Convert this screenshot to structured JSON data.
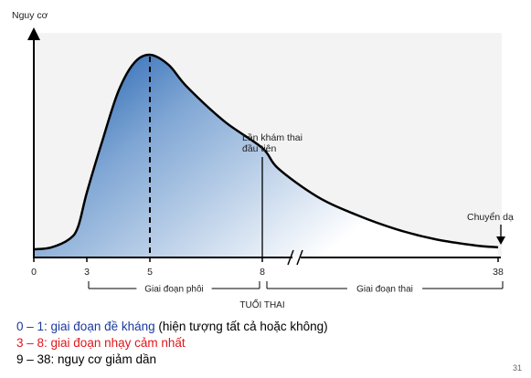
{
  "chart_data": {
    "type": "area",
    "ylabel": "Nguy cơ",
    "xlabel": "TUỔI THAI",
    "x_ticks": [
      "0",
      "3",
      "5",
      "8",
      "38"
    ],
    "series": [
      {
        "points": [
          {
            "x": 0,
            "y": 4
          },
          {
            "x": 1,
            "y": 5
          },
          {
            "x": 2,
            "y": 9
          },
          {
            "x": 2.5,
            "y": 15
          },
          {
            "x": 3,
            "y": 32
          },
          {
            "x": 3.5,
            "y": 58
          },
          {
            "x": 4,
            "y": 82
          },
          {
            "x": 4.5,
            "y": 96
          },
          {
            "x": 5,
            "y": 100
          },
          {
            "x": 5.5,
            "y": 95
          },
          {
            "x": 6,
            "y": 84
          },
          {
            "x": 7,
            "y": 67
          },
          {
            "x": 8,
            "y": 54
          },
          {
            "x": 10,
            "y": 44
          },
          {
            "x": 15,
            "y": 30
          },
          {
            "x": 20,
            "y": 21
          },
          {
            "x": 25,
            "y": 14
          },
          {
            "x": 30,
            "y": 9
          },
          {
            "x": 35,
            "y": 6
          },
          {
            "x": 38,
            "y": 5
          }
        ]
      }
    ],
    "peak_x": 5,
    "annotations": {
      "first_visit": {
        "line1": "Lần khám thai",
        "line2": "đầu tiên",
        "x": 8
      },
      "delivery": "Chuyển dạ"
    },
    "periods": [
      {
        "label": "Giai đoạn phôi",
        "from": 3,
        "to": 8
      },
      {
        "label": "Giai đoạn thai",
        "from": 8,
        "to": 38
      }
    ],
    "colors": {
      "fill_dark": "#1f5fae",
      "fill_light": "#ffffff",
      "line": "#000000"
    }
  },
  "legend": [
    {
      "num": "0 – 1",
      "text": ": giai đoạn đề kháng",
      "extra": " (hiện tượng tất cả hoặc không)",
      "color": "#1a3a9c"
    },
    {
      "num": "3 – 8",
      "text": ": giai đoạn nhạy cảm nhất",
      "extra": "",
      "color": "#e0161b"
    },
    {
      "num": "9 – 38",
      "text": ": nguy cơ giảm dần",
      "extra": "",
      "color": "#000000"
    }
  ],
  "page_number": "31"
}
